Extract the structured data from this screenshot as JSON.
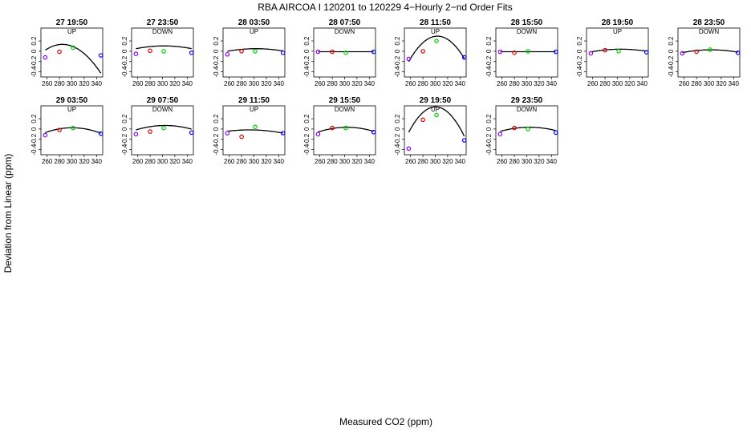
{
  "chart_data": {
    "type": "scatter",
    "title": "RBA   AIRCOA I   120201 to 120229   4−Hourly 2−nd Order Fits",
    "xlabel": "Measured CO2 (ppm)",
    "ylabel": "Deviation from Linear (ppm)",
    "xlim": [
      250,
      350
    ],
    "ylim": [
      -0.5,
      0.45
    ],
    "x_ticks": [
      260,
      280,
      300,
      320,
      340
    ],
    "y_ticks": [
      -0.4,
      -0.2,
      0.0,
      0.2
    ],
    "y_tick_labels": [
      "-0.4",
      "-0.2",
      "0",
      "0.2"
    ],
    "point_colors": [
      "#8b00ff",
      "#e00000",
      "#00d000",
      "#0000ff"
    ],
    "curve_color": "#000000",
    "panels": [
      {
        "label": "27 19:50",
        "dir": "UP",
        "x": [
          257,
          280,
          302,
          347
        ],
        "y": [
          -0.12,
          -0.01,
          0.07,
          -0.08
        ],
        "fit": [
          -0.000145,
          0.0826,
          -11.63
        ]
      },
      {
        "label": "27 23:50",
        "dir": "DOWN",
        "x": [
          257,
          280,
          302,
          347
        ],
        "y": [
          -0.05,
          0.01,
          0.0,
          -0.03
        ],
        "fit": [
          -2.63e-05,
          0.0159,
          -2.3
        ]
      },
      {
        "label": "28 03:50",
        "dir": "UP",
        "x": [
          257,
          280,
          302,
          347
        ],
        "y": [
          -0.06,
          0.0,
          0.0,
          -0.03
        ],
        "fit": [
          -2.29e-05,
          0.0139,
          -2.06
        ]
      },
      {
        "label": "28 07:50",
        "dir": "DOWN",
        "x": [
          257,
          280,
          302,
          347
        ],
        "y": [
          -0.01,
          -0.01,
          -0.03,
          -0.01
        ],
        "fit": [
          0,
          0,
          -0.01
        ]
      },
      {
        "label": "28 11:50",
        "dir": "UP",
        "x": [
          257,
          280,
          302,
          347
        ],
        "y": [
          -0.15,
          0.0,
          0.2,
          -0.12
        ],
        "fit": [
          -0.000229,
          0.139,
          -20.8
        ]
      },
      {
        "label": "28 15:50",
        "dir": "DOWN",
        "x": [
          257,
          280,
          302,
          347
        ],
        "y": [
          -0.01,
          -0.03,
          0.0,
          -0.01
        ],
        "fit": [
          0,
          0,
          -0.01
        ]
      },
      {
        "label": "28 19:50",
        "dir": "UP",
        "x": [
          257,
          280,
          302,
          347
        ],
        "y": [
          -0.04,
          0.02,
          0.0,
          -0.02
        ],
        "fit": [
          -2.29e-05,
          0.014,
          -2.1
        ]
      },
      {
        "label": "28 23:50",
        "dir": "DOWN",
        "x": [
          257,
          280,
          302,
          347
        ],
        "y": [
          -0.04,
          -0.01,
          0.03,
          -0.03
        ],
        "fit": [
          -2.47e-05,
          0.015,
          -2.25
        ]
      },
      {
        "label": "29 03:50",
        "dir": "UP",
        "x": [
          257,
          280,
          302,
          347
        ],
        "y": [
          -0.12,
          -0.02,
          0.02,
          -0.09
        ],
        "fit": [
          -4.94e-05,
          0.0297,
          -4.44
        ]
      },
      {
        "label": "29 07:50",
        "dir": "DOWN",
        "x": [
          257,
          280,
          302,
          347
        ],
        "y": [
          -0.1,
          -0.05,
          0.02,
          -0.07
        ],
        "fit": [
          -3.88e-05,
          0.0236,
          -3.52
        ]
      },
      {
        "label": "29 11:50",
        "dir": "UP",
        "x": [
          257,
          280,
          302,
          347
        ],
        "y": [
          -0.08,
          -0.15,
          0.04,
          -0.08
        ],
        "fit": [
          -2.12e-05,
          0.0124,
          -1.83
        ]
      },
      {
        "label": "29 15:50",
        "dir": "DOWN",
        "x": [
          257,
          280,
          302,
          347
        ],
        "y": [
          -0.1,
          0.02,
          0.02,
          -0.06
        ],
        "fit": [
          -4.23e-05,
          0.0257,
          -3.87
        ]
      },
      {
        "label": "29 19:50",
        "dir": "UP",
        "x": [
          257,
          280,
          302,
          347
        ],
        "y": [
          -0.38,
          0.18,
          0.27,
          -0.22
        ],
        "fit": [
          -0.000263,
          0.158,
          -23.3
        ]
      },
      {
        "label": "29 23:50",
        "dir": "DOWN",
        "x": [
          257,
          280,
          302,
          347
        ],
        "y": [
          -0.1,
          0.02,
          0.0,
          -0.07
        ],
        "fit": [
          -3.53e-05,
          0.0215,
          -3.24
        ]
      }
    ]
  }
}
